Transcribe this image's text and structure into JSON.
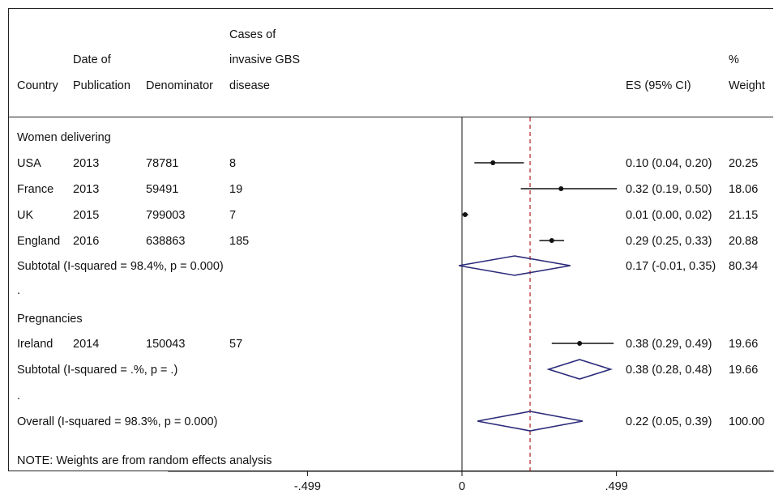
{
  "header": {
    "country": "Country",
    "date_l1": "Date of",
    "date_l2": "Publication",
    "denominator": "Denominator",
    "cases_l1": "Cases of",
    "cases_l2": "invasive GBS",
    "cases_l3": "disease",
    "es": "ES (95% CI)",
    "weight_l1": "%",
    "weight_l2": "Weight"
  },
  "groups": [
    {
      "label": "Women delivering"
    },
    {
      "label": "Pregnancies"
    }
  ],
  "rows": [
    {
      "country": "USA",
      "year": "2013",
      "denominator": "78781",
      "cases": "8",
      "es_text": "0.10 (0.04, 0.20)",
      "weight": "20.25"
    },
    {
      "country": "France",
      "year": "2013",
      "denominator": "59491",
      "cases": "19",
      "es_text": "0.32 (0.19, 0.50)",
      "weight": "18.06"
    },
    {
      "country": "UK",
      "year": "2015",
      "denominator": "799003",
      "cases": "7",
      "es_text": "0.01 (0.00, 0.02)",
      "weight": "21.15"
    },
    {
      "country": "England",
      "year": "2016",
      "denominator": "638863",
      "cases": "185",
      "es_text": "0.29 (0.25, 0.33)",
      "weight": "20.88"
    },
    {
      "country": "Ireland",
      "year": "2014",
      "denominator": "150043",
      "cases": "57",
      "es_text": "0.38 (0.29, 0.49)",
      "weight": "19.66"
    }
  ],
  "subtotals": [
    {
      "label": "Subtotal  (I-squared = 98.4%, p = 0.000)",
      "es_text": "0.17 (-0.01, 0.35)",
      "weight": "80.34"
    },
    {
      "label": "Subtotal  (I-squared = .%, p = .)",
      "es_text": "0.38 (0.28, 0.48)",
      "weight": "19.66"
    }
  ],
  "overall": {
    "label": "Overall  (I-squared = 98.3%, p = 0.000)",
    "es_text": "0.22 (0.05, 0.39)",
    "weight": "100.00"
  },
  "dots": [
    ".",
    "."
  ],
  "note": "NOTE: Weights are from random effects analysis",
  "colors": {
    "diamond": "#2b2b7a",
    "ref_line": "#b22222",
    "ink": "#111111"
  },
  "chart_data": {
    "type": "forest",
    "title": "",
    "xlabel": "",
    "ylabel": "",
    "x_ticks": [
      -0.499,
      0,
      0.499
    ],
    "x_tick_labels": [
      "-.499",
      "0",
      ".499"
    ],
    "xlim": [
      -0.95,
      0.55
    ],
    "reference_line": 0.22,
    "studies": [
      {
        "label": "USA",
        "es": 0.1,
        "lo": 0.04,
        "hi": 0.2,
        "weight": 20.25
      },
      {
        "label": "France",
        "es": 0.32,
        "lo": 0.19,
        "hi": 0.5,
        "weight": 18.06
      },
      {
        "label": "UK",
        "es": 0.01,
        "lo": 0.0,
        "hi": 0.02,
        "weight": 21.15
      },
      {
        "label": "England",
        "es": 0.29,
        "lo": 0.25,
        "hi": 0.33,
        "weight": 20.88
      },
      {
        "label": "Ireland",
        "es": 0.38,
        "lo": 0.29,
        "hi": 0.49,
        "weight": 19.66
      }
    ],
    "pooled": [
      {
        "label": "Subtotal Women delivering",
        "es": 0.17,
        "lo": -0.01,
        "hi": 0.35,
        "weight": 80.34
      },
      {
        "label": "Subtotal Pregnancies",
        "es": 0.38,
        "lo": 0.28,
        "hi": 0.48,
        "weight": 19.66
      },
      {
        "label": "Overall",
        "es": 0.22,
        "lo": 0.05,
        "hi": 0.39,
        "weight": 100.0
      }
    ]
  }
}
